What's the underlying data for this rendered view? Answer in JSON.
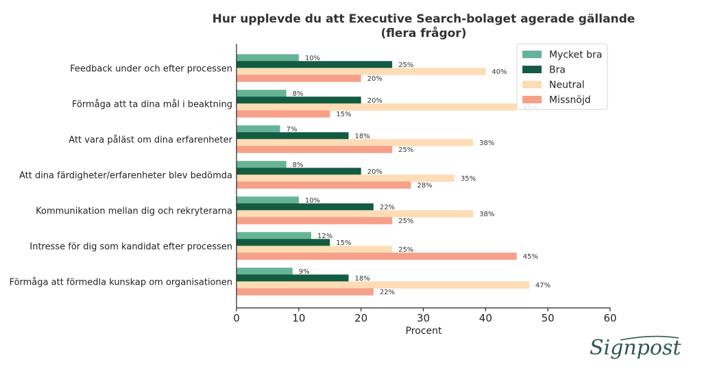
{
  "chart_data": {
    "type": "bar",
    "orientation": "horizontal",
    "title_lines": [
      "Hur upplevde du att Executive Search-bolaget agerade gällande",
      "(flera frågor)"
    ],
    "xlabel": "Procent",
    "ylabel": "",
    "xlim": [
      0,
      60
    ],
    "xticks": [
      "0",
      "10",
      "20",
      "30",
      "40",
      "50",
      "60"
    ],
    "grid": false,
    "legend_position": "top-right",
    "categories": [
      "Feedback under och efter processen",
      "Förmåga att ta dina mål i beaktning",
      "Att vara påläst om dina erfarenheter",
      "Att dina färdigheter/erfarenheter blev bedömda",
      "Kommunikation mellan dig och rekryterarna",
      "Intresse för dig som kandidat efter processen",
      "Förmåga att förmedla kunskap om organisationen"
    ],
    "series": [
      {
        "name": "Mycket bra",
        "color": "#66b497",
        "values": [
          10,
          8,
          7,
          8,
          10,
          12,
          9
        ],
        "labels": [
          "10%",
          "8%",
          "7%",
          "8%",
          "10%",
          "12%",
          "9%"
        ]
      },
      {
        "name": "Bra",
        "color": "#135c42",
        "values": [
          25,
          20,
          18,
          20,
          22,
          15,
          18
        ],
        "labels": [
          "25%",
          "20%",
          "18%",
          "20%",
          "22%",
          "15%",
          "18%"
        ]
      },
      {
        "name": "Neutral",
        "color": "#fedcb5",
        "values": [
          40,
          45,
          38,
          35,
          38,
          25,
          47
        ],
        "labels": [
          "40%",
          "45%",
          "38%",
          "35%",
          "38%",
          "25%",
          "47%"
        ]
      },
      {
        "name": "Missnöjd",
        "color": "#f6a08a",
        "values": [
          20,
          15,
          25,
          28,
          25,
          45,
          22
        ],
        "labels": [
          "20%",
          "15%",
          "25%",
          "28%",
          "25%",
          "45%",
          "22%"
        ]
      }
    ]
  },
  "logo": {
    "text": "Signpost",
    "color": "#2f5a48"
  }
}
